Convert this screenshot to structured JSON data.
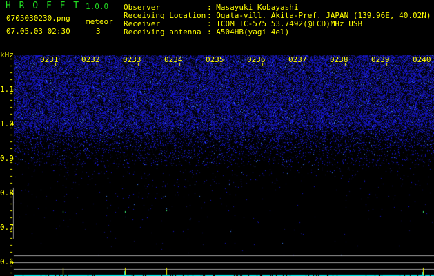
{
  "app": {
    "title": "H R O F F T",
    "version": "1.0.0"
  },
  "file": {
    "name": "0705030230.png",
    "datetime": "07.05.03 02:30"
  },
  "meteor": {
    "label": "meteor",
    "count": "3"
  },
  "info": [
    {
      "label": "Observer",
      "value": "Masayuki Kobayashi"
    },
    {
      "label": "Receiving Location",
      "value": "Ogata-vill. Akita-Pref. JAPAN (139.96E, 40.02N)"
    },
    {
      "label": "Receiver",
      "value": "ICOM IC-575 53.7492(@LCD)MHz USB"
    },
    {
      "label": "Receiving antenna",
      "value": "A504HB(yagi 4el)"
    }
  ],
  "spectrogram": {
    "unit": "kHz",
    "time_labels": [
      "0231",
      "0232",
      "0233",
      "0234",
      "0235",
      "0236",
      "0237",
      "0238",
      "0239",
      "0240"
    ],
    "freq_labels": [
      "1.1",
      "1.0",
      "0.9",
      "0.8",
      "0.7",
      "0.6"
    ],
    "colors": {
      "noise": "#2020c0",
      "axis": "#ffff00",
      "meteor_marker": "#ffff00",
      "baseline": "#00e0e0",
      "grid": "#a0a0a0"
    }
  }
}
